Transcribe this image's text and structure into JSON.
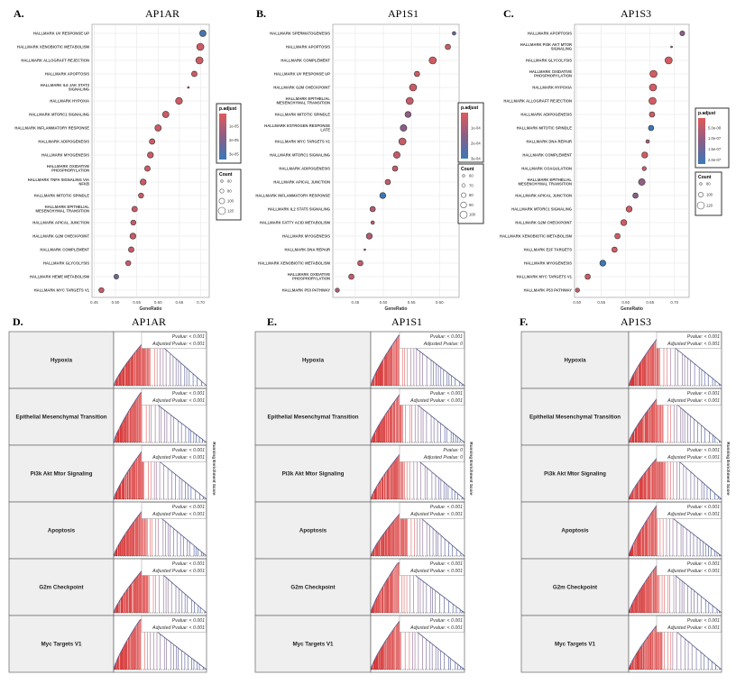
{
  "colors": {
    "low_padj": "#e05a5a",
    "mid_padj": "#8a5e86",
    "high_padj": "#3a78b8",
    "grid": "#e6e6e6",
    "label_box": "#efefef"
  },
  "chart_data": [
    {
      "type": "scatter",
      "panel": "A.",
      "title": "AP1AR",
      "xlabel": "GeneRatio",
      "xlim": [
        0.445,
        0.72
      ],
      "xticks": [
        "0.45",
        "0.50",
        "0.55",
        "0.60",
        "0.65",
        "0.70"
      ],
      "color_legend": {
        "title": "p.adjust",
        "range": [
          1e-06,
          3.4e-05
        ],
        "ticks": [
          "1e-05",
          "2e-05",
          "3e-05"
        ]
      },
      "size_legend": {
        "title": "Count",
        "values": [
          "60",
          "80",
          "100",
          "120"
        ]
      },
      "terms": [
        {
          "term": "HALLMARK UV RESPONSE UP",
          "ratio": 0.705,
          "count": 110,
          "padj": 3.2e-05
        },
        {
          "term": "HALLMARK XENOBIOTIC METABOLISM",
          "ratio": 0.699,
          "count": 120,
          "padj": 5e-06
        },
        {
          "term": "HALLMARK ALLOGRAFT REJECTION",
          "ratio": 0.697,
          "count": 120,
          "padj": 5e-06
        },
        {
          "term": "HALLMARK APOPTOSIS",
          "ratio": 0.685,
          "count": 100,
          "padj": 5e-06
        },
        {
          "term": "HALLMARK IL6 JAK STAT3|SIGNALING",
          "ratio": 0.671,
          "count": 50,
          "padj": 7e-06
        },
        {
          "term": "HALLMARK HYPOXIA",
          "ratio": 0.649,
          "count": 115,
          "padj": 5e-06
        },
        {
          "term": "HALLMARK MTORC1 SIGNALING",
          "ratio": 0.618,
          "count": 110,
          "padj": 5e-06
        },
        {
          "term": "HALLMARK INFLAMMATORY RESPONSE",
          "ratio": 0.6,
          "count": 110,
          "padj": 5e-06
        },
        {
          "term": "HALLMARK ADIPOGENESIS",
          "ratio": 0.586,
          "count": 100,
          "padj": 5e-06
        },
        {
          "term": "HALLMARK MYOGENESIS",
          "ratio": 0.582,
          "count": 105,
          "padj": 5e-06
        },
        {
          "term": "HALLMARK OXIDATIVE|PHOSPHORYLATION",
          "ratio": 0.575,
          "count": 100,
          "padj": 5e-06
        },
        {
          "term": "HALLMARK TNFA SIGNALING VIA|NFKB",
          "ratio": 0.565,
          "count": 105,
          "padj": 5e-06
        },
        {
          "term": "HALLMARK MITOTIC SPINDLE",
          "ratio": 0.56,
          "count": 95,
          "padj": 6e-06
        },
        {
          "term": "HALLMARK EPITHELIAL|MESENCHYMAL TRANSITION",
          "ratio": 0.545,
          "count": 100,
          "padj": 5e-06
        },
        {
          "term": "HALLMARK APICAL JUNCTION",
          "ratio": 0.542,
          "count": 95,
          "padj": 6e-06
        },
        {
          "term": "HALLMARK G2M CHECKPOINT",
          "ratio": 0.541,
          "count": 105,
          "padj": 6e-06
        },
        {
          "term": "HALLMARK COMPLEMENT",
          "ratio": 0.537,
          "count": 100,
          "padj": 6e-06
        },
        {
          "term": "HALLMARK GLYCOLYSIS",
          "ratio": 0.53,
          "count": 95,
          "padj": 6e-06
        },
        {
          "term": "HALLMARK HEME METABOLISM",
          "ratio": 0.502,
          "count": 90,
          "padj": 2.2e-05
        },
        {
          "term": "HALLMARK MYC TARGETS V1",
          "ratio": 0.467,
          "count": 95,
          "padj": 6e-06
        }
      ]
    },
    {
      "type": "scatter",
      "panel": "B.",
      "title": "AP1S1",
      "xlabel": "GeneRatio",
      "xlim": [
        0.41,
        0.635
      ],
      "xticks": [
        "0.45",
        "0.50",
        "0.55",
        "0.60"
      ],
      "color_legend": {
        "title": "p.adjust",
        "range": [
          0,
          0.0003
        ],
        "ticks": [
          "1e-04",
          "2e-04",
          "3e-04"
        ]
      },
      "size_legend": {
        "title": "Count",
        "values": [
          "60",
          "70",
          "80",
          "90",
          "100"
        ]
      },
      "terms": [
        {
          "term": "HALLMARK SPERMATOGENESIS",
          "ratio": 0.626,
          "count": 70,
          "padj": 0.00021
        },
        {
          "term": "HALLMARK APOPTOSIS",
          "ratio": 0.615,
          "count": 85,
          "padj": 3e-05
        },
        {
          "term": "HALLMARK COMPLEMENT",
          "ratio": 0.588,
          "count": 100,
          "padj": 3e-05
        },
        {
          "term": "HALLMARK UV RESPONSE UP",
          "ratio": 0.56,
          "count": 85,
          "padj": 3e-05
        },
        {
          "term": "HALLMARK G2M CHECKPOINT",
          "ratio": 0.553,
          "count": 100,
          "padj": 4e-05
        },
        {
          "term": "HALLMARK EPITHELIAL|MESENCHYMAL TRANSITION",
          "ratio": 0.547,
          "count": 100,
          "padj": 5e-05
        },
        {
          "term": "HALLMARK MITOTIC SPINDLE",
          "ratio": 0.544,
          "count": 90,
          "padj": 0.00014
        },
        {
          "term": "HALLMARK ESTROGEN RESPONSE|LATE",
          "ratio": 0.536,
          "count": 95,
          "padj": 0.00015
        },
        {
          "term": "HALLMARK MYC TARGETS V1",
          "ratio": 0.534,
          "count": 100,
          "padj": 5e-05
        },
        {
          "term": "HALLMARK MTORC1 SIGNALING",
          "ratio": 0.524,
          "count": 95,
          "padj": 5e-05
        },
        {
          "term": "HALLMARK ADIPOGENESIS",
          "ratio": 0.521,
          "count": 85,
          "padj": 5e-05
        },
        {
          "term": "HALLMARK APICAL JUNCTION",
          "ratio": 0.508,
          "count": 85,
          "padj": 5e-05
        },
        {
          "term": "HALLMARK INFLAMMATORY RESPONSE",
          "ratio": 0.499,
          "count": 90,
          "padj": 0.0003
        },
        {
          "term": "HALLMARK IL2 STAT5 SIGNALING",
          "ratio": 0.481,
          "count": 85,
          "padj": 8e-05
        },
        {
          "term": "HALLMARK FATTY ACID METABOLISM",
          "ratio": 0.481,
          "count": 70,
          "padj": 6e-05
        },
        {
          "term": "HALLMARK MYOGENESIS",
          "ratio": 0.475,
          "count": 90,
          "padj": 8e-05
        },
        {
          "term": "HALLMARK DNA REPAIR",
          "ratio": 0.467,
          "count": 55,
          "padj": 9e-05
        },
        {
          "term": "HALLMARK XENOBIOTIC METABOLISM",
          "ratio": 0.459,
          "count": 85,
          "padj": 5e-05
        },
        {
          "term": "HALLMARK OXIDATIVE|PHOSPHORYLATION",
          "ratio": 0.443,
          "count": 85,
          "padj": 5e-05
        },
        {
          "term": "HALLMARK P53 PATHWAY",
          "ratio": 0.418,
          "count": 75,
          "padj": 0.0001
        }
      ]
    },
    {
      "type": "scatter",
      "panel": "C.",
      "title": "AP1S3",
      "xlabel": "GeneRatio",
      "xlim": [
        0.495,
        0.73
      ],
      "xticks": [
        "0.50",
        "0.55",
        "0.60",
        "0.65",
        "0.70"
      ],
      "color_legend": {
        "title": "p.adjust",
        "range": [
          4e-09,
          2.2e-07
        ],
        "ticks": [
          "5.0e-08",
          "1.0e-07",
          "1.5e-07",
          "2.0e-07"
        ]
      },
      "size_legend": {
        "title": "Count",
        "values": [
          "80",
          "100",
          "120"
        ]
      },
      "terms": [
        {
          "term": "HALLMARK APOPTOSIS",
          "ratio": 0.716,
          "count": 100,
          "padj": 1.1e-07
        },
        {
          "term": "HALLMARK PI3K AKT MTOR|SIGNALING",
          "ratio": 0.694,
          "count": 65,
          "padj": 1e-07
        },
        {
          "term": "HALLMARK GLYCOLYSIS",
          "ratio": 0.688,
          "count": 120,
          "padj": 2e-08
        },
        {
          "term": "HALLMARK OXIDATIVE|PHOSPHORYLATION",
          "ratio": 0.657,
          "count": 120,
          "padj": 2e-08
        },
        {
          "term": "HALLMARK HYPOXIA",
          "ratio": 0.656,
          "count": 120,
          "padj": 2e-08
        },
        {
          "term": "HALLMARK ALLOGRAFT REJECTION",
          "ratio": 0.655,
          "count": 120,
          "padj": 2e-08
        },
        {
          "term": "HALLMARK ADIPOGENESIS",
          "ratio": 0.654,
          "count": 105,
          "padj": 2e-08
        },
        {
          "term": "HALLMARK MITOTIC SPINDLE",
          "ratio": 0.652,
          "count": 105,
          "padj": 2.2e-07
        },
        {
          "term": "HALLMARK DNA REPAIR",
          "ratio": 0.645,
          "count": 90,
          "padj": 6e-08
        },
        {
          "term": "HALLMARK COMPLEMENT",
          "ratio": 0.639,
          "count": 110,
          "padj": 2e-08
        },
        {
          "term": "HALLMARK COAGULATION",
          "ratio": 0.638,
          "count": 95,
          "padj": 3e-08
        },
        {
          "term": "HALLMARK EPITHELIAL|MESENCHYMAL TRANSITION",
          "ratio": 0.633,
          "count": 115,
          "padj": 1e-07
        },
        {
          "term": "HALLMARK APICAL JUNCTION",
          "ratio": 0.62,
          "count": 105,
          "padj": 1.2e-07
        },
        {
          "term": "HALLMARK MTORC1 SIGNALING",
          "ratio": 0.607,
          "count": 110,
          "padj": 2e-08
        },
        {
          "term": "HALLMARK G2M CHECKPOINT",
          "ratio": 0.596,
          "count": 110,
          "padj": 2e-08
        },
        {
          "term": "HALLMARK XENOBIOTIC METABOLISM",
          "ratio": 0.583,
          "count": 105,
          "padj": 2e-08
        },
        {
          "term": "HALLMARK E2F TARGETS",
          "ratio": 0.577,
          "count": 105,
          "padj": 2e-08
        },
        {
          "term": "HALLMARK MYOGENESIS",
          "ratio": 0.553,
          "count": 110,
          "padj": 2.2e-07
        },
        {
          "term": "HALLMARK MYC TARGETS V1",
          "ratio": 0.522,
          "count": 105,
          "padj": 3e-08
        },
        {
          "term": "HALLMARK P53 PATHWAY",
          "ratio": 0.501,
          "count": 95,
          "padj": 4e-08
        }
      ]
    },
    {
      "type": "area",
      "panel": "D.",
      "title": "AP1AR",
      "ylabel": "Running Enrichment Score",
      "rows": [
        {
          "term": "Hypoxia",
          "pvalue": "Pvalue: < 0.001",
          "adj": "Adjusted Pvalue: < 0.001"
        },
        {
          "term": "Epithelial Mesenchymal Transition",
          "pvalue": "Pvalue: < 0.001",
          "adj": "Adjusted Pvalue: < 0.001"
        },
        {
          "term": "Pi3k Akt Mtor Signaling",
          "pvalue": "Pvalue: < 0.001",
          "adj": "Adjusted Pvalue: < 0.001"
        },
        {
          "term": "Apoptosis",
          "pvalue": "Pvalue: < 0.001",
          "adj": "Adjusted Pvalue: < 0.001"
        },
        {
          "term": "G2m Checkpoint",
          "pvalue": "Pvalue: < 0.001",
          "adj": "Adjusted Pvalue: < 0.001"
        },
        {
          "term": "Myc Targets V1",
          "pvalue": "Pvalue: < 0.001",
          "adj": "Adjusted Pvalue: < 0.001"
        }
      ]
    },
    {
      "type": "area",
      "panel": "E.",
      "title": "AP1S1",
      "ylabel": "Running Enrichment Score",
      "rows": [
        {
          "term": "Hypoxia",
          "pvalue": "Pvalue: < 0.001",
          "adj": "Adjusted Pvalue: 0"
        },
        {
          "term": "Epithelial Mesenchymal Transition",
          "pvalue": "Pvalue: < 0.001",
          "adj": "Adjusted Pvalue: < 0.001"
        },
        {
          "term": "Pi3k Akt Mtor Signaling",
          "pvalue": "Pvalue: 0",
          "adj": "Adjusted Pvalue: 0"
        },
        {
          "term": "Apoptosis",
          "pvalue": "Pvalue: < 0.001",
          "adj": "Adjusted Pvalue: < 0.001"
        },
        {
          "term": "G2m Checkpoint",
          "pvalue": "Pvalue: < 0.001",
          "adj": "Adjusted Pvalue: < 0.001"
        },
        {
          "term": "Myc Targets V1",
          "pvalue": "Pvalue: < 0.001",
          "adj": "Adjusted Pvalue: < 0.001"
        }
      ]
    },
    {
      "type": "area",
      "panel": "F.",
      "title": "AP1S3",
      "ylabel": "Running Enrichment Score",
      "rows": [
        {
          "term": "Hypoxia",
          "pvalue": "Pvalue: < 0.001",
          "adj": "Adjusted Pvalue: < 0.001"
        },
        {
          "term": "Epithelial Mesenchymal Transition",
          "pvalue": "Pvalue: < 0.001",
          "adj": "Adjusted Pvalue: < 0.001"
        },
        {
          "term": "Pi3k Akt Mtor Signaling",
          "pvalue": "Pvalue: < 0.001",
          "adj": "Adjusted Pvalue: < 0.001"
        },
        {
          "term": "Apoptosis",
          "pvalue": "Pvalue: < 0.001",
          "adj": "Adjusted Pvalue: < 0.001"
        },
        {
          "term": "G2m Checkpoint",
          "pvalue": "Pvalue: < 0.001",
          "adj": "Adjusted Pvalue: < 0.001"
        },
        {
          "term": "Myc Targets V1",
          "pvalue": "Pvalue: < 0.001",
          "adj": "Adjusted Pvalue: < 0.001"
        }
      ]
    }
  ]
}
